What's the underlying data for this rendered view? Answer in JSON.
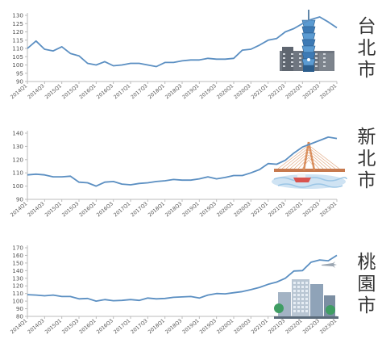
{
  "colors": {
    "line": "#5b8fc2",
    "axis": "#bbbbbb",
    "text": "#555555"
  },
  "chart_data": [
    {
      "type": "line",
      "city": "台北市",
      "categories": [
        "2014Q1",
        "2014Q2",
        "2014Q3",
        "2014Q4",
        "2015Q1",
        "2015Q2",
        "2015Q3",
        "2015Q4",
        "2016Q1",
        "2016Q2",
        "2016Q3",
        "2016Q4",
        "2017Q1",
        "2017Q2",
        "2017Q3",
        "2017Q4",
        "2018Q1",
        "2018Q2",
        "2018Q3",
        "2018Q4",
        "2019Q1",
        "2019Q2",
        "2019Q3",
        "2019Q4",
        "2020Q1",
        "2020Q2",
        "2020Q3",
        "2020Q4",
        "2021Q1",
        "2021Q2",
        "2021Q3",
        "2021Q4",
        "2022Q1",
        "2022Q2",
        "2022Q3",
        "2022Q4",
        "2023Q1"
      ],
      "x_tick_labels": [
        "2014Q1",
        "2014Q3",
        "2015Q1",
        "2015Q3",
        "2016Q1",
        "2016Q3",
        "2017Q1",
        "2017Q3",
        "2018Q1",
        "2018Q3",
        "2019Q1",
        "2019Q3",
        "2020Q1",
        "2020Q3",
        "2021Q1",
        "2021Q3",
        "2022Q1",
        "2022Q3",
        "2023Q1"
      ],
      "y_ticks": [
        90,
        95,
        100,
        105,
        110,
        115,
        120,
        125,
        130
      ],
      "ylim": [
        90,
        130
      ],
      "values": [
        110,
        114.5,
        109.5,
        108.5,
        111,
        107,
        105.5,
        101,
        100,
        102,
        99.5,
        100,
        101,
        101,
        100,
        99,
        101.5,
        101.5,
        102.5,
        103,
        103,
        104,
        103.5,
        103.5,
        104,
        109,
        109.5,
        112,
        115,
        116,
        120,
        122,
        125,
        127.5,
        129,
        126,
        122.5
      ]
    },
    {
      "type": "line",
      "city": "新北市",
      "categories": [
        "2014Q1",
        "2014Q2",
        "2014Q3",
        "2014Q4",
        "2015Q1",
        "2015Q2",
        "2015Q3",
        "2015Q4",
        "2016Q1",
        "2016Q2",
        "2016Q3",
        "2016Q4",
        "2017Q1",
        "2017Q2",
        "2017Q3",
        "2017Q4",
        "2018Q1",
        "2018Q2",
        "2018Q3",
        "2018Q4",
        "2019Q1",
        "2019Q2",
        "2019Q3",
        "2019Q4",
        "2020Q1",
        "2020Q2",
        "2020Q3",
        "2020Q4",
        "2021Q1",
        "2021Q2",
        "2021Q3",
        "2021Q4",
        "2022Q1",
        "2022Q2",
        "2022Q3",
        "2022Q4",
        "2023Q1"
      ],
      "x_tick_labels": [
        "2014Q1",
        "2014Q3",
        "2015Q1",
        "2015Q3",
        "2016Q1",
        "2016Q3",
        "2017Q1",
        "2017Q3",
        "2018Q1",
        "2018Q3",
        "2019Q1",
        "2019Q3",
        "2020Q1",
        "2020Q3",
        "2021Q1",
        "2021Q3",
        "2022Q1",
        "2022Q3",
        "2023Q1"
      ],
      "y_ticks": [
        90,
        100,
        110,
        120,
        130,
        140
      ],
      "ylim": [
        90,
        140
      ],
      "values": [
        108.5,
        109,
        108.5,
        107,
        107,
        107.5,
        103,
        102.5,
        100,
        103,
        103.5,
        101.5,
        101,
        102,
        102.5,
        103.5,
        104,
        105,
        104.5,
        104.5,
        105.5,
        107,
        105.5,
        106.5,
        108,
        108,
        110,
        112.5,
        117,
        116.5,
        119.5,
        125,
        129.5,
        132,
        134.5,
        137,
        136
      ]
    },
    {
      "type": "line",
      "city": "桃園市",
      "categories": [
        "2014Q1",
        "2014Q2",
        "2014Q3",
        "2014Q4",
        "2015Q1",
        "2015Q2",
        "2015Q3",
        "2015Q4",
        "2016Q1",
        "2016Q2",
        "2016Q3",
        "2016Q4",
        "2017Q1",
        "2017Q2",
        "2017Q3",
        "2017Q4",
        "2018Q1",
        "2018Q2",
        "2018Q3",
        "2018Q4",
        "2019Q1",
        "2019Q2",
        "2019Q3",
        "2019Q4",
        "2020Q1",
        "2020Q2",
        "2020Q3",
        "2020Q4",
        "2021Q1",
        "2021Q2",
        "2021Q3",
        "2021Q4",
        "2022Q1",
        "2022Q2",
        "2022Q3",
        "2022Q4",
        "2023Q1"
      ],
      "x_tick_labels": [
        "2014Q1",
        "2014Q3",
        "2015Q1",
        "2015Q3",
        "2016Q1",
        "2016Q3",
        "2017Q1",
        "2017Q3",
        "2018Q1",
        "2018Q3",
        "2019Q1",
        "2019Q3",
        "2020Q1",
        "2020Q3",
        "2021Q1",
        "2021Q3",
        "2022Q1",
        "2022Q3",
        "2023Q1"
      ],
      "y_ticks": [
        80,
        90,
        100,
        110,
        120,
        130,
        140,
        150,
        160,
        170
      ],
      "ylim": [
        80,
        170
      ],
      "values": [
        108.5,
        108,
        107,
        108,
        106,
        106,
        103,
        103.5,
        100,
        102,
        100.5,
        101,
        102,
        101,
        104,
        103,
        103.5,
        105,
        105.5,
        106,
        104,
        108,
        110,
        109.5,
        111,
        112.5,
        115,
        118,
        122,
        125,
        130,
        139.5,
        140,
        151,
        154,
        153,
        160
      ]
    }
  ]
}
